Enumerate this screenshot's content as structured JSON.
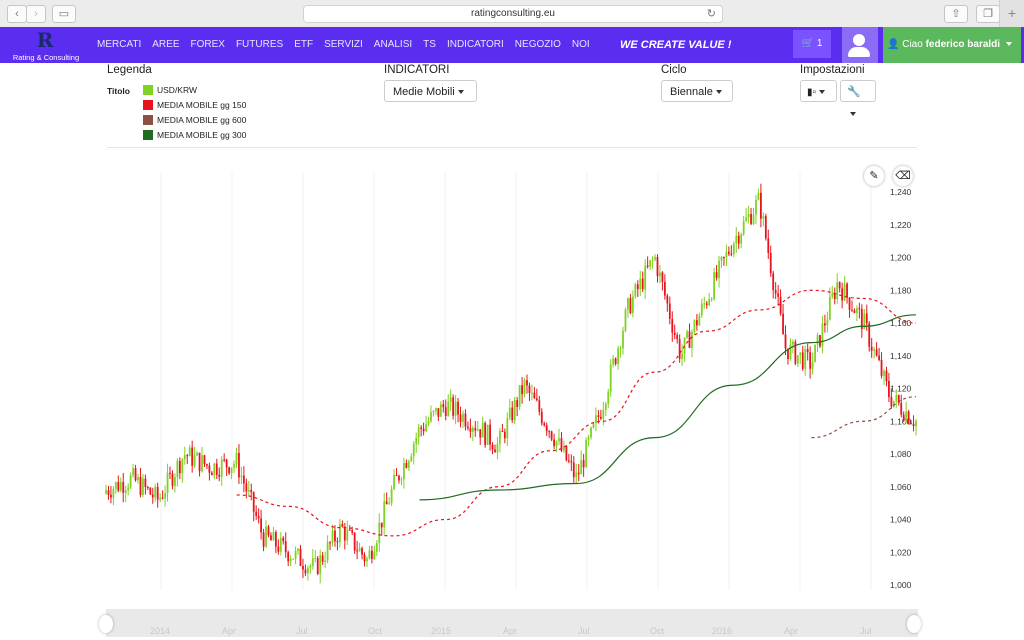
{
  "browser": {
    "url": "ratingconsulting.eu",
    "back": "‹",
    "forward": "›",
    "sidebar": "▭",
    "share": "⇧",
    "tabs": "❐",
    "new_tab": "+",
    "reload": "↻"
  },
  "brand": {
    "logo_mark": "R",
    "name": "Rating & Consulting"
  },
  "menu": [
    "MERCATI",
    "AREE",
    "FOREX",
    "FUTURES",
    "ETF",
    "SERVIZI",
    "ANALISI",
    "TS",
    "INDICATORI",
    "NEGOZIO",
    "NOI"
  ],
  "tagline": "WE CREATE VALUE !",
  "cart": {
    "count": "1"
  },
  "account": {
    "greeting": "Ciao",
    "name": "federico baraldi"
  },
  "legend": {
    "heading": "Legenda",
    "label": "Titolo",
    "items": [
      {
        "name": "USD/KRW",
        "color": "#7ed321"
      },
      {
        "name": "MEDIA MOBILE gg 150",
        "color": "#e8131b"
      },
      {
        "name": "MEDIA MOBILE gg 600",
        "color": "#8b5145"
      },
      {
        "name": "MEDIA MOBILE gg 300",
        "color": "#1f6b1f"
      }
    ]
  },
  "indicators": {
    "heading": "INDICATORI",
    "selected": "Medie Mobili"
  },
  "cycle": {
    "heading": "Ciclo",
    "selected": "Biennale"
  },
  "settings": {
    "heading": "Impostazioni",
    "chart_type_icon": "candlestick-icon",
    "tools_icon": "wrench-icon"
  },
  "chart_tools": {
    "draw_icon": "pencil-icon",
    "erase_icon": "eraser-icon"
  },
  "navigator": {
    "labels": [
      "2014",
      "Apr",
      "Jul",
      "Oct",
      "2015",
      "Apr",
      "Jul",
      "Oct",
      "2016",
      "Apr",
      "Jul"
    ]
  },
  "chart_data": {
    "type": "line",
    "title": "",
    "xlabel": "",
    "ylabel": "",
    "y_ticks": [
      "1,000",
      "1,020",
      "1,040",
      "1,060",
      "1,080",
      "1,100",
      "1,120",
      "1,140",
      "1,160",
      "1,180",
      "1,200",
      "1,220",
      "1,240"
    ],
    "ylim": [
      1000,
      1240
    ],
    "x_range": [
      "2014-01",
      "2016-08"
    ],
    "grid": true,
    "series": [
      {
        "name": "USD/KRW",
        "style": "candles",
        "colors": {
          "up": "#7ed321",
          "down": "#e8131b"
        },
        "x": [
          "2014-01",
          "2014-02",
          "2014-03",
          "2014-04",
          "2014-05",
          "2014-06",
          "2014-07",
          "2014-08",
          "2014-09",
          "2014-10",
          "2014-11",
          "2014-12",
          "2015-01",
          "2015-02",
          "2015-03",
          "2015-04",
          "2015-05",
          "2015-06",
          "2015-07",
          "2015-08",
          "2015-09",
          "2015-10",
          "2015-11",
          "2015-12",
          "2016-01",
          "2016-02",
          "2016-03",
          "2016-04",
          "2016-05",
          "2016-06",
          "2016-07",
          "2016-08"
        ],
        "values": [
          1058,
          1065,
          1052,
          1080,
          1072,
          1075,
          1030,
          1020,
          1010,
          1035,
          1015,
          1060,
          1095,
          1110,
          1100,
          1085,
          1122,
          1095,
          1065,
          1110,
          1170,
          1200,
          1140,
          1175,
          1210,
          1235,
          1145,
          1135,
          1185,
          1160,
          1115,
          1100
        ]
      },
      {
        "name": "MEDIA MOBILE gg 150",
        "style": "dashed",
        "color": "#e8131b",
        "x": [
          "2014-06",
          "2014-08",
          "2014-10",
          "2014-12",
          "2015-02",
          "2015-04",
          "2015-06",
          "2015-08",
          "2015-10",
          "2015-12",
          "2016-02",
          "2016-04",
          "2016-06",
          "2016-08"
        ],
        "values": [
          1055,
          1048,
          1035,
          1030,
          1040,
          1060,
          1082,
          1100,
          1130,
          1155,
          1168,
          1180,
          1175,
          1160
        ]
      },
      {
        "name": "MEDIA MOBILE gg 600",
        "style": "dashed",
        "color": "#8b5145",
        "x": [
          "2016-04",
          "2016-06",
          "2016-08"
        ],
        "values": [
          1090,
          1100,
          1115
        ]
      },
      {
        "name": "MEDIA MOBILE gg 300",
        "style": "solid",
        "color": "#1f6b1f",
        "x": [
          "2015-01",
          "2015-04",
          "2015-07",
          "2015-10",
          "2016-01",
          "2016-04",
          "2016-06",
          "2016-08"
        ],
        "values": [
          1052,
          1058,
          1062,
          1090,
          1122,
          1148,
          1158,
          1165
        ]
      }
    ]
  }
}
